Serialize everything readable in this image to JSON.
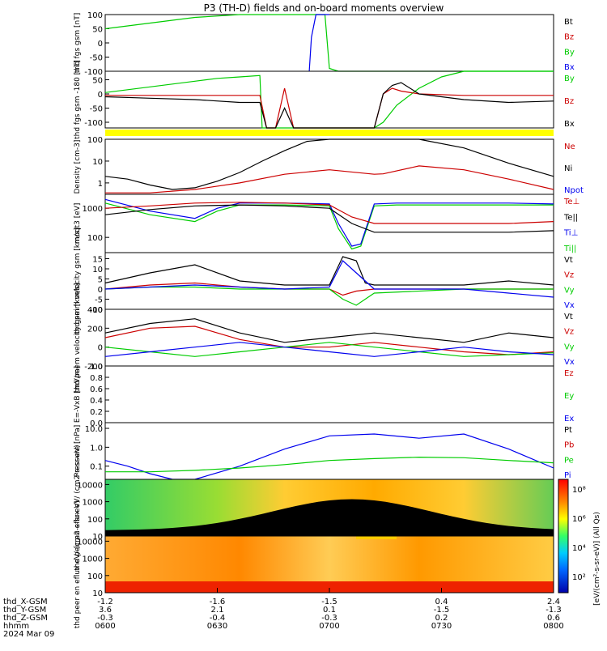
{
  "chart_data": {
    "type": "line",
    "title": "P3 (TH-D) fields and on-board moments overview",
    "colors": {
      "black": "#000000",
      "red": "#cc0000",
      "green": "#00cc00",
      "blue": "#0000ee",
      "yellow": "#ffff00"
    },
    "time": {
      "tick_times": [
        "0600",
        "0630",
        "0700",
        "0730",
        "0800"
      ],
      "date": "2024 Mar 09",
      "ephemeris": {
        "labels": [
          "thd_X-GSM",
          "thd_Y-GSM",
          "thd_Z-GSM",
          "hhmm"
        ],
        "rows": [
          [
            "-1.2",
            "-1.6",
            "-1.5",
            "0.4",
            "2.4"
          ],
          [
            "3.6",
            "2.1",
            "0.1",
            "-1.5",
            "-1.3"
          ],
          [
            "-0.3",
            "-0.4",
            "-0.3",
            "0.2",
            "0.6"
          ],
          [
            "0600",
            "0630",
            "0700",
            "0730",
            "0800"
          ]
        ]
      }
    },
    "panels": [
      {
        "id": "fgs",
        "ylabel": "thd fgs gsm [nT]",
        "scale": "linear",
        "ylim": [
          -100,
          100
        ],
        "yticks": [
          "100",
          "50",
          "0",
          "-50",
          "-100"
        ],
        "legend": [
          "Bt",
          "Bz",
          "By",
          "Bx"
        ],
        "legend_colors": [
          "#000000",
          "#cc0000",
          "#00cc00",
          "#0000ee"
        ],
        "series": [
          {
            "name": "By",
            "color": "#00cc00",
            "x": [
              0,
              0.1,
              0.2,
              0.3,
              0.35,
              0.37,
              0.4,
              0.43,
              0.45,
              0.49,
              0.5,
              0.52,
              0.55,
              0.6,
              0.7,
              0.8,
              0.9,
              1.0
            ],
            "y": [
              50,
              70,
              90,
              100,
              100,
              100,
              100,
              100,
              100,
              100,
              -90,
              -100,
              -100,
              -100,
              -100,
              -100,
              -100,
              -100
            ]
          },
          {
            "name": "Bx",
            "color": "#0000ee",
            "x": [
              0.455,
              0.46,
              0.47,
              0.48,
              0.5
            ],
            "y": [
              -100,
              20,
              100,
              100,
              100
            ]
          }
        ]
      },
      {
        "id": "fgs2",
        "ylabel": "thd fgs gsm -180 [nT]",
        "scale": "linear",
        "ylim": [
          -120,
          80
        ],
        "yticks": [
          "50",
          "0",
          "-50",
          "-100"
        ],
        "legend": [
          "By",
          "Bz",
          "Bx"
        ],
        "legend_colors": [
          "#00cc00",
          "#cc0000",
          "#000000"
        ],
        "series": [
          {
            "name": "By",
            "color": "#00cc00",
            "x": [
              0,
              0.05,
              0.1,
              0.15,
              0.2,
              0.25,
              0.3,
              0.345,
              0.35,
              0.38,
              0.4,
              0.42,
              0.6,
              0.62,
              0.65,
              0.7,
              0.75,
              0.8,
              0.9,
              1.0
            ],
            "y": [
              5,
              15,
              25,
              35,
              45,
              55,
              60,
              65,
              -120,
              -120,
              -120,
              -120,
              -120,
              -100,
              -40,
              20,
              60,
              80,
              80,
              80
            ]
          },
          {
            "name": "Bz",
            "color": "#cc0000",
            "x": [
              0,
              0.1,
              0.2,
              0.3,
              0.345,
              0.36,
              0.38,
              0.4,
              0.42,
              0.6,
              0.62,
              0.64,
              0.66,
              0.7,
              0.8,
              0.9,
              1.0
            ],
            "y": [
              -5,
              -5,
              -5,
              -5,
              -5,
              -120,
              -120,
              20,
              -120,
              -120,
              0,
              20,
              10,
              0,
              -5,
              -5,
              -5
            ]
          },
          {
            "name": "Bx",
            "color": "#000000",
            "x": [
              0,
              0.1,
              0.2,
              0.3,
              0.345,
              0.36,
              0.38,
              0.4,
              0.42,
              0.6,
              0.62,
              0.64,
              0.66,
              0.7,
              0.8,
              0.9,
              1.0
            ],
            "y": [
              -10,
              -15,
              -20,
              -30,
              -30,
              -120,
              -120,
              -50,
              -120,
              -120,
              0,
              30,
              40,
              0,
              -20,
              -30,
              -25
            ]
          }
        ]
      },
      {
        "id": "density",
        "ylabel": "Density [cm-3]",
        "scale": "log",
        "ylim": [
          0.3,
          100
        ],
        "yticks": [
          "100",
          "10",
          "1"
        ],
        "legend": [
          "Ne",
          "Ni",
          "Npot"
        ],
        "legend_colors": [
          "#cc0000",
          "#000000",
          "#0000ee"
        ],
        "series": [
          {
            "name": "Ni",
            "color": "#000000",
            "x": [
              0,
              0.05,
              0.1,
              0.15,
              0.2,
              0.25,
              0.3,
              0.35,
              0.4,
              0.45,
              0.5,
              0.55,
              0.6,
              0.65,
              0.7,
              0.8,
              0.9,
              1.0
            ],
            "y": [
              2,
              1.5,
              0.8,
              0.5,
              0.6,
              1.2,
              3,
              10,
              30,
              80,
              100,
              100,
              100,
              100,
              100,
              40,
              8,
              2
            ]
          },
          {
            "name": "Ne",
            "color": "#cc0000",
            "x": [
              0,
              0.1,
              0.2,
              0.3,
              0.4,
              0.5,
              0.6,
              0.62,
              0.7,
              0.8,
              0.9,
              1.0
            ],
            "y": [
              0.35,
              0.35,
              0.5,
              1,
              2.5,
              4,
              2.5,
              2.6,
              6,
              4,
              1.5,
              0.5
            ]
          }
        ]
      },
      {
        "id": "moments_t",
        "ylabel": "moqt3 [eV]",
        "scale": "log",
        "ylim": [
          30,
          3000
        ],
        "yticks": [
          "1000",
          "100"
        ],
        "legend": [
          "Te⊥",
          "Te||",
          "Ti⊥",
          "Ti||"
        ],
        "legend_colors": [
          "#cc0000",
          "#000000",
          "#0000ee",
          "#00cc00"
        ],
        "series": [
          {
            "name": "Ti||",
            "color": "#00cc00",
            "x": [
              0,
              0.1,
              0.2,
              0.25,
              0.3,
              0.4,
              0.5,
              0.52,
              0.55,
              0.57,
              0.6,
              0.65,
              0.7,
              0.8,
              0.9,
              1.0
            ],
            "y": [
              1500,
              600,
              350,
              800,
              1300,
              1300,
              1200,
              200,
              40,
              50,
              1200,
              1300,
              1300,
              1300,
              1300,
              1300
            ]
          },
          {
            "name": "Ti⊥",
            "color": "#0000ee",
            "x": [
              0,
              0.1,
              0.2,
              0.25,
              0.3,
              0.4,
              0.5,
              0.52,
              0.55,
              0.57,
              0.6,
              0.65,
              0.7,
              0.8,
              0.9,
              1.0
            ],
            "y": [
              2000,
              800,
              450,
              1000,
              1500,
              1500,
              1400,
              300,
              50,
              60,
              1400,
              1500,
              1500,
              1500,
              1500,
              1400
            ]
          },
          {
            "name": "Te⊥",
            "color": "#cc0000",
            "x": [
              0,
              0.1,
              0.2,
              0.3,
              0.4,
              0.5,
              0.55,
              0.6,
              0.7,
              0.8,
              0.9,
              1.0
            ],
            "y": [
              1000,
              1200,
              1500,
              1600,
              1500,
              1300,
              500,
              300,
              300,
              300,
              300,
              350
            ]
          },
          {
            "name": "Te||",
            "color": "#000000",
            "x": [
              0,
              0.1,
              0.2,
              0.3,
              0.4,
              0.5,
              0.55,
              0.6,
              0.7,
              0.8,
              0.9,
              1.0
            ],
            "y": [
              600,
              900,
              1200,
              1300,
              1200,
              1000,
              300,
              150,
              150,
              150,
              150,
              170
            ]
          }
        ]
      },
      {
        "id": "peim",
        "ylabel": "thd peim velocity gsm [km/s]",
        "scale": "linear",
        "ylim": [
          -10,
          18
        ],
        "yticks": [
          "15",
          "10",
          "5",
          "0",
          "-5",
          "-10"
        ],
        "legend": [
          "Vt",
          "Vz",
          "Vy",
          "Vx"
        ],
        "legend_colors": [
          "#000000",
          "#cc0000",
          "#00cc00",
          "#0000ee"
        ],
        "series": [
          {
            "name": "Vt",
            "color": "#000000",
            "x": [
              0,
              0.1,
              0.2,
              0.3,
              0.4,
              0.5,
              0.53,
              0.56,
              0.58,
              0.6,
              0.7,
              0.8,
              0.9,
              1.0
            ],
            "y": [
              3,
              8,
              12,
              4,
              2,
              2,
              16,
              14,
              3,
              2,
              2,
              2,
              4,
              2
            ]
          },
          {
            "name": "Vz",
            "color": "#cc0000",
            "x": [
              0,
              0.1,
              0.2,
              0.3,
              0.4,
              0.5,
              0.53,
              0.56,
              0.6,
              0.8,
              1.0
            ],
            "y": [
              0,
              2,
              3,
              1,
              0,
              0,
              -3,
              -1,
              0,
              0,
              0
            ]
          },
          {
            "name": "Vy",
            "color": "#00cc00",
            "x": [
              0,
              0.1,
              0.2,
              0.3,
              0.4,
              0.5,
              0.53,
              0.56,
              0.6,
              0.8,
              1.0
            ],
            "y": [
              0,
              1,
              1,
              0,
              0,
              0,
              -5,
              -8,
              -2,
              0,
              0
            ]
          },
          {
            "name": "Vx",
            "color": "#0000ee",
            "x": [
              0,
              0.1,
              0.2,
              0.3,
              0.4,
              0.5,
              0.53,
              0.56,
              0.6,
              0.8,
              0.9,
              1.0
            ],
            "y": [
              0,
              1,
              2,
              1,
              0,
              1,
              14,
              8,
              0,
              0,
              -2,
              -4
            ]
          }
        ]
      },
      {
        "id": "peem",
        "ylabel": "thd peem velocity gsm [km/s]",
        "scale": "linear",
        "ylim": [
          -200,
          400
        ],
        "yticks": [
          "400",
          "200",
          "0",
          "-200"
        ],
        "legend": [
          "Vt",
          "Vz",
          "Vy",
          "Vx"
        ],
        "legend_colors": [
          "#000000",
          "#cc0000",
          "#00cc00",
          "#0000ee"
        ],
        "series": [
          {
            "name": "Vt",
            "color": "#000000",
            "x": [
              0,
              0.1,
              0.2,
              0.3,
              0.4,
              0.5,
              0.6,
              0.7,
              0.8,
              0.9,
              1.0
            ],
            "y": [
              150,
              250,
              300,
              150,
              50,
              100,
              150,
              100,
              50,
              150,
              100
            ]
          },
          {
            "name": "Vz",
            "color": "#cc0000",
            "x": [
              0,
              0.1,
              0.2,
              0.3,
              0.4,
              0.5,
              0.6,
              0.7,
              0.8,
              0.9,
              1.0
            ],
            "y": [
              100,
              200,
              220,
              80,
              0,
              0,
              50,
              0,
              -50,
              -80,
              -50
            ]
          },
          {
            "name": "Vy",
            "color": "#00cc00",
            "x": [
              0,
              0.1,
              0.2,
              0.3,
              0.4,
              0.5,
              0.6,
              0.7,
              0.8,
              0.9,
              1.0
            ],
            "y": [
              0,
              -50,
              -100,
              -50,
              0,
              50,
              0,
              -50,
              -100,
              -80,
              -60
            ]
          },
          {
            "name": "Vx",
            "color": "#0000ee",
            "x": [
              0,
              0.1,
              0.2,
              0.3,
              0.4,
              0.5,
              0.6,
              0.7,
              0.8,
              0.9,
              1.0
            ],
            "y": [
              -100,
              -50,
              0,
              50,
              0,
              -50,
              -100,
              -50,
              0,
              -50,
              -80
            ]
          }
        ]
      },
      {
        "id": "efield",
        "ylabel": "E=-VxB [mV/m]",
        "scale": "linear",
        "ylim": [
          0,
          1
        ],
        "yticks": [
          "1.0",
          "0.8",
          "0.6",
          "0.4",
          "0.2",
          "0.0"
        ],
        "legend": [
          "Ez",
          "Ey",
          "Ex"
        ],
        "legend_colors": [
          "#cc0000",
          "#00cc00",
          "#0000ee"
        ],
        "series": []
      },
      {
        "id": "pressure",
        "ylabel": "Pressure [nPa]",
        "scale": "log",
        "ylim": [
          0.02,
          20
        ],
        "yticks": [
          "10.0",
          "1.0",
          "0.1"
        ],
        "legend": [
          "Pt",
          "Pb",
          "Pe",
          "Pi"
        ],
        "legend_colors": [
          "#000000",
          "#cc0000",
          "#00cc00",
          "#0000ee"
        ],
        "series": [
          {
            "name": "Pi",
            "color": "#0000ee",
            "x": [
              0,
              0.05,
              0.1,
              0.15,
              0.2,
              0.3,
              0.4,
              0.5,
              0.6,
              0.7,
              0.8,
              0.9,
              1.0
            ],
            "y": [
              0.2,
              0.1,
              0.04,
              0.02,
              0.02,
              0.1,
              0.8,
              4,
              5,
              3,
              5,
              0.8,
              0.08
            ]
          },
          {
            "name": "Pe",
            "color": "#00cc00",
            "x": [
              0,
              0.1,
              0.2,
              0.3,
              0.4,
              0.5,
              0.6,
              0.7,
              0.8,
              0.9,
              1.0
            ],
            "y": [
              0.05,
              0.05,
              0.06,
              0.08,
              0.12,
              0.2,
              0.25,
              0.3,
              0.28,
              0.2,
              0.15
            ]
          }
        ]
      },
      {
        "id": "peir",
        "ylabel": "thd peir en eflux eV/ (cm2-s-sr-eV)",
        "scale": "log",
        "ylim": [
          10,
          20000
        ],
        "yticks": [
          "10000",
          "1000",
          "100",
          "10"
        ],
        "type": "heatmap"
      },
      {
        "id": "peer",
        "ylabel": "thd peer en eflux eV/ (cm2-s-sr-eV)",
        "scale": "log",
        "ylim": [
          10,
          20000
        ],
        "yticks": [
          "10000",
          "1000",
          "100",
          "10"
        ],
        "type": "heatmap"
      }
    ],
    "colorbar": {
      "label": "[eV/(cm²-s-sr-eV)] (All Qs)",
      "ticks": [
        "10⁸",
        "10⁶",
        "10⁴",
        "10²"
      ]
    }
  }
}
